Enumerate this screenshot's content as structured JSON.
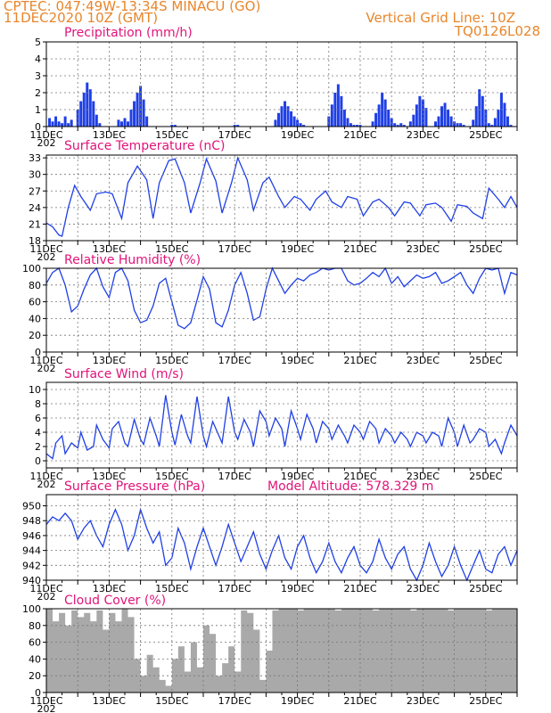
{
  "header": {
    "left_line1": "CPTEC:   047:49W-13:34S   MINACU (GO)",
    "left_line2": "11DEC2020 10Z (GMT)",
    "right_line1": "Vertical Grid Line: 10Z",
    "right_line2": "TQ0126L028"
  },
  "colors": {
    "header": "#e8862c",
    "title": "#e0147a",
    "line": "#1f3fe6",
    "bar": "#1f3fe6",
    "cloud": "#a9a9a9"
  },
  "date_labels": [
    "11DEC",
    "13DEC",
    "15DEC",
    "17DEC",
    "19DEC",
    "21DEC",
    "23DEC",
    "25DEC"
  ],
  "year_fragment": "202",
  "panels": [
    {
      "id": "precip",
      "title": "Precipitation (mm/h)",
      "type": "bar",
      "ylim": [
        0,
        5
      ],
      "yticks": [
        0,
        1,
        2,
        3,
        4,
        5
      ]
    },
    {
      "id": "temp",
      "title": "Surface Temperature (nC)",
      "type": "line",
      "ylim": [
        18,
        33.5
      ],
      "yticks": [
        18,
        21,
        24,
        27,
        30,
        33
      ]
    },
    {
      "id": "rh",
      "title": "Relative Humidity (%)",
      "type": "line",
      "ylim": [
        0,
        100
      ],
      "yticks": [
        0,
        20,
        40,
        60,
        80,
        100
      ]
    },
    {
      "id": "wind",
      "title": "Surface Wind (m/s)",
      "type": "line",
      "ylim": [
        -1,
        11
      ],
      "yticks": [
        0,
        2,
        4,
        6,
        8,
        10
      ]
    },
    {
      "id": "press",
      "title": "Surface Pressure (hPa)",
      "extra": "Model Altitude: 578.329 m",
      "type": "line",
      "ylim": [
        940,
        951.5
      ],
      "yticks": [
        940,
        942,
        944,
        946,
        948,
        950
      ]
    },
    {
      "id": "cloud",
      "title": "Cloud Cover (%)",
      "type": "bar",
      "ylim": [
        0,
        100
      ],
      "yticks": [
        0,
        20,
        40,
        60,
        80,
        100
      ]
    }
  ],
  "chart_data": [
    {
      "type": "bar",
      "title": "Precipitation (mm/h)",
      "x_unit": "day offset from 11DEC 00Z",
      "ylim": [
        0,
        5
      ],
      "x": [
        0.1,
        0.2,
        0.3,
        0.4,
        0.5,
        0.6,
        0.7,
        0.8,
        1.0,
        1.1,
        1.2,
        1.3,
        1.4,
        1.5,
        1.6,
        1.7,
        2.3,
        2.4,
        2.5,
        2.6,
        2.7,
        2.8,
        2.9,
        3.0,
        3.1,
        3.2,
        4.0,
        4.1,
        6.0,
        6.1,
        7.3,
        7.4,
        7.5,
        7.6,
        7.7,
        7.8,
        7.9,
        8.0,
        8.1,
        8.2,
        9.0,
        9.1,
        9.2,
        9.3,
        9.4,
        9.5,
        9.6,
        9.7,
        9.8,
        9.9,
        10.0,
        10.4,
        10.5,
        10.6,
        10.7,
        10.8,
        10.9,
        11.0,
        11.1,
        11.2,
        11.3,
        11.4,
        11.6,
        11.7,
        11.8,
        11.9,
        12.0,
        12.1,
        12.4,
        12.5,
        12.6,
        12.7,
        12.8,
        12.9,
        13.0,
        13.1,
        13.2,
        13.3,
        13.6,
        13.7,
        13.8,
        13.9,
        14.0,
        14.1,
        14.2,
        14.3,
        14.4,
        14.5,
        14.6,
        14.7,
        14.8
      ],
      "values": [
        0.5,
        0.3,
        0.6,
        0.3,
        0.2,
        0.6,
        0.2,
        0.4,
        1.0,
        1.5,
        2.0,
        2.6,
        2.2,
        1.5,
        0.7,
        0.2,
        0.4,
        0.3,
        0.5,
        0.3,
        1.0,
        1.5,
        2.0,
        2.4,
        1.6,
        0.6,
        0.1,
        0.1,
        0.1,
        0.1,
        0.4,
        0.8,
        1.2,
        1.5,
        1.2,
        0.9,
        0.6,
        0.4,
        0.2,
        0.1,
        0.6,
        1.3,
        2.0,
        2.5,
        1.8,
        1.0,
        0.5,
        0.2,
        0.1,
        0.1,
        0.1,
        0.3,
        0.8,
        1.3,
        2.0,
        1.6,
        1.0,
        0.5,
        0.2,
        0.1,
        0.2,
        0.1,
        0.3,
        0.7,
        1.3,
        1.8,
        1.6,
        1.1,
        0.3,
        0.6,
        1.2,
        1.4,
        1.0,
        0.6,
        0.3,
        0.2,
        0.2,
        0.1,
        0.4,
        1.2,
        2.2,
        1.8,
        1.0,
        0.2,
        0.1,
        0.5,
        1.0,
        2.0,
        1.4,
        0.6,
        0.1
      ]
    },
    {
      "type": "line",
      "title": "Surface Temperature (nC)",
      "x_unit": "day offset from 11DEC 00Z",
      "ylim": [
        18,
        33.5
      ],
      "x": [
        0.0,
        0.2,
        0.4,
        0.5,
        0.7,
        0.9,
        1.1,
        1.4,
        1.6,
        1.9,
        2.1,
        2.4,
        2.6,
        2.9,
        3.2,
        3.4,
        3.6,
        3.9,
        4.1,
        4.4,
        4.6,
        4.9,
        5.1,
        5.4,
        5.6,
        5.9,
        6.1,
        6.4,
        6.6,
        6.9,
        7.1,
        7.4,
        7.6,
        7.9,
        8.1,
        8.4,
        8.6,
        8.9,
        9.1,
        9.4,
        9.6,
        9.9,
        10.1,
        10.4,
        10.6,
        10.9,
        11.1,
        11.4,
        11.6,
        11.9,
        12.1,
        12.4,
        12.6,
        12.9,
        13.1,
        13.4,
        13.6,
        13.9,
        14.1,
        14.4,
        14.6,
        14.8,
        15.0
      ],
      "values": [
        21.2,
        20.5,
        19.0,
        18.8,
        24.0,
        28.0,
        26.0,
        23.5,
        26.5,
        26.8,
        26.5,
        22.0,
        28.5,
        31.5,
        29.0,
        22.0,
        28.5,
        32.5,
        32.8,
        28.5,
        23.0,
        28.5,
        32.8,
        28.8,
        23.0,
        28.5,
        33.0,
        29.0,
        23.5,
        28.5,
        29.5,
        26.0,
        24.0,
        26.0,
        25.5,
        23.5,
        25.5,
        27.0,
        25.0,
        24.0,
        26.0,
        25.5,
        22.5,
        25.0,
        25.5,
        24.0,
        22.5,
        25.0,
        24.8,
        22.5,
        24.5,
        24.8,
        24.0,
        21.5,
        24.5,
        24.2,
        23.0,
        22.0,
        27.5,
        25.5,
        24.0,
        26.0,
        24.0
      ]
    },
    {
      "type": "line",
      "title": "Relative Humidity (%)",
      "x_unit": "day offset from 11DEC 00Z",
      "ylim": [
        0,
        100
      ],
      "x": [
        0.0,
        0.2,
        0.4,
        0.6,
        0.8,
        1.0,
        1.2,
        1.4,
        1.6,
        1.8,
        2.0,
        2.2,
        2.4,
        2.6,
        2.8,
        3.0,
        3.2,
        3.4,
        3.6,
        3.8,
        4.0,
        4.2,
        4.4,
        4.6,
        4.8,
        5.0,
        5.2,
        5.4,
        5.6,
        5.8,
        6.0,
        6.2,
        6.4,
        6.6,
        6.8,
        7.0,
        7.2,
        7.4,
        7.6,
        7.8,
        8.0,
        8.2,
        8.4,
        8.6,
        8.8,
        9.0,
        9.2,
        9.4,
        9.6,
        9.8,
        10.0,
        10.2,
        10.4,
        10.6,
        10.8,
        11.0,
        11.2,
        11.4,
        11.6,
        11.8,
        12.0,
        12.2,
        12.4,
        12.6,
        12.8,
        13.0,
        13.2,
        13.4,
        13.6,
        13.8,
        14.0,
        14.2,
        14.4,
        14.6,
        14.8,
        15.0
      ],
      "values": [
        82,
        95,
        100,
        80,
        48,
        55,
        75,
        92,
        100,
        78,
        65,
        95,
        100,
        85,
        50,
        35,
        38,
        55,
        82,
        88,
        60,
        32,
        28,
        35,
        62,
        90,
        75,
        35,
        30,
        50,
        80,
        95,
        70,
        38,
        42,
        75,
        100,
        85,
        70,
        80,
        88,
        85,
        92,
        95,
        100,
        98,
        100,
        100,
        85,
        80,
        82,
        88,
        95,
        90,
        100,
        82,
        90,
        78,
        85,
        92,
        88,
        90,
        95,
        82,
        85,
        90,
        95,
        80,
        70,
        88,
        100,
        98,
        100,
        70,
        95,
        92
      ]
    },
    {
      "type": "line",
      "title": "Surface Wind (m/s)",
      "x_unit": "day offset from 11DEC 00Z",
      "ylim": [
        -1,
        11
      ],
      "x": [
        0.0,
        0.2,
        0.3,
        0.5,
        0.6,
        0.8,
        1.0,
        1.1,
        1.3,
        1.5,
        1.6,
        1.8,
        2.0,
        2.1,
        2.3,
        2.5,
        2.6,
        2.8,
        3.0,
        3.1,
        3.3,
        3.5,
        3.6,
        3.8,
        4.0,
        4.1,
        4.3,
        4.5,
        4.6,
        4.8,
        5.0,
        5.1,
        5.3,
        5.5,
        5.6,
        5.8,
        6.0,
        6.1,
        6.3,
        6.5,
        6.6,
        6.8,
        7.0,
        7.1,
        7.3,
        7.5,
        7.6,
        7.8,
        8.0,
        8.1,
        8.3,
        8.5,
        8.6,
        8.8,
        9.0,
        9.1,
        9.3,
        9.5,
        9.6,
        9.8,
        10.0,
        10.1,
        10.3,
        10.5,
        10.6,
        10.8,
        11.0,
        11.1,
        11.3,
        11.5,
        11.6,
        11.8,
        12.0,
        12.1,
        12.3,
        12.5,
        12.6,
        12.8,
        13.0,
        13.1,
        13.3,
        13.5,
        13.6,
        13.8,
        14.0,
        14.1,
        14.3,
        14.5,
        14.6,
        14.8,
        15.0
      ],
      "values": [
        1.0,
        0.3,
        2.5,
        3.5,
        1.0,
        2.5,
        1.8,
        4.0,
        1.5,
        2.0,
        5.0,
        3.0,
        1.8,
        4.5,
        5.5,
        2.5,
        2.0,
        5.8,
        3.0,
        2.3,
        6.0,
        3.5,
        2.0,
        9.2,
        4.0,
        2.2,
        6.5,
        3.5,
        2.5,
        9.0,
        3.5,
        2.0,
        5.5,
        3.5,
        2.5,
        9.0,
        4.0,
        3.0,
        5.8,
        4.0,
        2.0,
        7.0,
        5.5,
        3.5,
        6.0,
        4.5,
        2.0,
        7.0,
        4.5,
        3.0,
        6.5,
        4.5,
        2.5,
        5.5,
        4.5,
        3.0,
        5.0,
        3.5,
        2.5,
        5.0,
        4.0,
        3.0,
        5.5,
        4.5,
        2.5,
        4.5,
        3.5,
        2.5,
        4.0,
        3.0,
        2.0,
        4.0,
        3.5,
        2.5,
        4.0,
        3.5,
        2.0,
        6.0,
        4.0,
        2.0,
        5.0,
        2.5,
        3.0,
        4.5,
        4.0,
        2.0,
        3.0,
        1.0,
        2.5,
        5.0,
        3.5
      ]
    },
    {
      "type": "line",
      "title": "Surface Pressure (hPa)",
      "x_unit": "day offset from 11DEC 00Z",
      "ylim": [
        940,
        951.5
      ],
      "x": [
        0.0,
        0.2,
        0.4,
        0.6,
        0.8,
        1.0,
        1.2,
        1.4,
        1.6,
        1.8,
        2.0,
        2.2,
        2.4,
        2.6,
        2.8,
        3.0,
        3.2,
        3.4,
        3.6,
        3.8,
        4.0,
        4.2,
        4.4,
        4.6,
        4.8,
        5.0,
        5.2,
        5.4,
        5.6,
        5.8,
        6.0,
        6.2,
        6.4,
        6.6,
        6.8,
        7.0,
        7.2,
        7.4,
        7.6,
        7.8,
        8.0,
        8.2,
        8.4,
        8.6,
        8.8,
        9.0,
        9.2,
        9.4,
        9.6,
        9.8,
        10.0,
        10.2,
        10.4,
        10.6,
        10.8,
        11.0,
        11.2,
        11.4,
        11.6,
        11.8,
        12.0,
        12.2,
        12.4,
        12.6,
        12.8,
        13.0,
        13.2,
        13.4,
        13.6,
        13.8,
        14.0,
        14.2,
        14.4,
        14.6,
        14.8,
        15.0
      ],
      "values": [
        947.5,
        948.5,
        948.0,
        949.0,
        948.0,
        945.5,
        947.0,
        948.0,
        946.0,
        944.5,
        947.5,
        949.5,
        947.5,
        944.0,
        946.0,
        949.5,
        947.0,
        945.0,
        946.5,
        942.0,
        943.0,
        947.0,
        945.0,
        941.5,
        944.5,
        947.0,
        944.5,
        942.0,
        944.5,
        947.5,
        945.0,
        942.5,
        944.5,
        946.5,
        943.5,
        941.5,
        944.0,
        946.0,
        943.0,
        941.5,
        944.5,
        946.0,
        943.0,
        941.0,
        942.5,
        945.0,
        942.5,
        941.0,
        943.0,
        944.5,
        942.0,
        941.0,
        942.5,
        945.5,
        943.0,
        941.5,
        943.5,
        944.5,
        941.5,
        940.0,
        942.0,
        945.0,
        942.5,
        940.5,
        942.0,
        944.5,
        942.0,
        940.0,
        942.0,
        944.0,
        941.5,
        941.0,
        943.5,
        944.5,
        942.0,
        944.0
      ]
    },
    {
      "type": "bar",
      "title": "Cloud Cover (%)",
      "x_unit": "day offset from 11DEC 00Z",
      "ylim": [
        0,
        100
      ],
      "x": [
        0.0,
        0.2,
        0.4,
        0.6,
        0.8,
        1.0,
        1.2,
        1.4,
        1.6,
        1.8,
        2.0,
        2.2,
        2.4,
        2.6,
        2.8,
        3.0,
        3.2,
        3.4,
        3.6,
        3.8,
        4.0,
        4.2,
        4.4,
        4.6,
        4.8,
        5.0,
        5.2,
        5.4,
        5.6,
        5.8,
        6.0,
        6.2,
        6.4,
        6.6,
        6.8,
        7.0,
        7.2,
        7.4,
        7.6,
        7.8,
        8.0,
        8.2,
        8.4,
        8.6,
        8.8,
        9.0,
        9.2,
        9.4,
        9.6,
        9.8,
        10.0,
        10.2,
        10.4,
        10.6,
        10.8,
        11.0,
        11.2,
        11.4,
        11.6,
        11.8,
        12.0,
        12.2,
        12.4,
        12.6,
        12.8,
        13.0,
        13.2,
        13.4,
        13.6,
        13.8,
        14.0,
        14.2,
        14.4,
        14.6,
        14.8
      ],
      "values": [
        100,
        85,
        95,
        80,
        98,
        90,
        95,
        85,
        98,
        75,
        95,
        85,
        100,
        90,
        40,
        20,
        45,
        30,
        15,
        8,
        40,
        55,
        25,
        60,
        30,
        80,
        70,
        20,
        35,
        55,
        25,
        98,
        95,
        75,
        15,
        50,
        98,
        100,
        100,
        100,
        98,
        100,
        100,
        100,
        100,
        100,
        98,
        100,
        100,
        100,
        100,
        100,
        98,
        100,
        100,
        100,
        100,
        100,
        98,
        100,
        100,
        100,
        100,
        100,
        98,
        100,
        100,
        100,
        100,
        100,
        98,
        100,
        100,
        100,
        100
      ]
    }
  ]
}
